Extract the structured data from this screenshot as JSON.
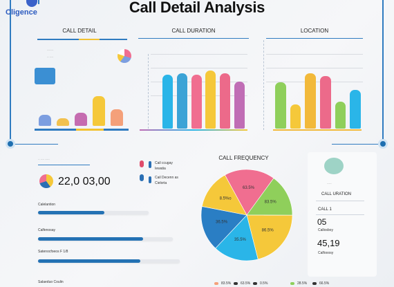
{
  "logo": {
    "text": "Cligence"
  },
  "title": "Call Detail Analysis",
  "panels": {
    "call_detail": {
      "label": "CALL DETAIL",
      "small_text": [
        "-------",
        "-- ----",
        "-------",
        "----",
        "----"
      ],
      "bars": [
        {
          "value": 0.22,
          "color": "#7c9ee0"
        },
        {
          "value": 0.15,
          "color": "#f2c14e"
        },
        {
          "value": 0.26,
          "color": "#c56cb0"
        },
        {
          "value": 0.58,
          "color": "#f5c83a"
        },
        {
          "value": 0.32,
          "color": "#f4a07a"
        }
      ],
      "accent_colors": [
        "#2f7bc0",
        "#f2c230",
        "#2f7bc0"
      ]
    },
    "call_duration": {
      "label": "CALL DURATION",
      "bars": [
        {
          "value": 0.72,
          "color": "#2ab5e8"
        },
        {
          "value": 0.74,
          "color": "#3ba3d6"
        },
        {
          "value": 0.72,
          "color": "#f06e90"
        },
        {
          "value": 0.78,
          "color": "#f5c83a"
        },
        {
          "value": 0.74,
          "color": "#ec6a8a"
        },
        {
          "value": 0.63,
          "color": "#c06db5"
        }
      ]
    },
    "location": {
      "label": "LOCATION",
      "bars": [
        {
          "value": 0.62,
          "color": "#8fcf5b"
        },
        {
          "value": 0.32,
          "color": "#f5c83a"
        },
        {
          "value": 0.74,
          "color": "#f2b93a"
        },
        {
          "value": 0.7,
          "color": "#ec6a8a"
        },
        {
          "value": 0.36,
          "color": "#8fcf5b"
        },
        {
          "value": 0.52,
          "color": "#2ab5e8"
        }
      ]
    }
  },
  "stats": {
    "big_value": "22,0 03,00",
    "legend": [
      {
        "text": "Cail ccugay",
        "color": "#e04c6b"
      },
      {
        "text": "Iewatia",
        "color": "#2a6fb4"
      },
      {
        "text": "Cail Decenn as",
        "color": "#2a6fb4"
      },
      {
        "text": "Cielorta",
        "color": "#2a6fb4"
      }
    ],
    "progress": [
      {
        "label": "Calelantion",
        "value": 0.6
      },
      {
        "label": "Calfenosay",
        "value": 0.78
      },
      {
        "label": "Satenocfoeos F 1/8",
        "value": 0.72
      },
      {
        "label": "Salaeduo Coulin",
        "value": 0.0
      }
    ]
  },
  "call_frequency": {
    "label": "CALL FREQUENCY",
    "slices": [
      {
        "label": "63.5%",
        "value": 0.18,
        "color": "#f06e90"
      },
      {
        "label": "83.5%",
        "value": 0.15,
        "color": "#8fcf5b"
      },
      {
        "label": "86.5%",
        "value": 0.21,
        "color": "#f5c83a"
      },
      {
        "label": "35.5%",
        "value": 0.16,
        "color": "#2ab5e8"
      },
      {
        "label": "36.5%",
        "value": 0.16,
        "color": "#2a7ec4"
      },
      {
        "label": "8.5%o",
        "value": 0.14,
        "color": "#f5c83a"
      }
    ],
    "bottom_labels": [
      "83.5%",
      "63.5%",
      "0.5%",
      "28.5%",
      "66.5%"
    ]
  },
  "side_card": {
    "badge_text": "-----",
    "heading": "CALL URATION",
    "row1_label": "CALL 1",
    "row1_value": "05",
    "row1_sub": "Callosboy",
    "row2_value": "45,19",
    "row2_sub": "Calfooosy"
  }
}
